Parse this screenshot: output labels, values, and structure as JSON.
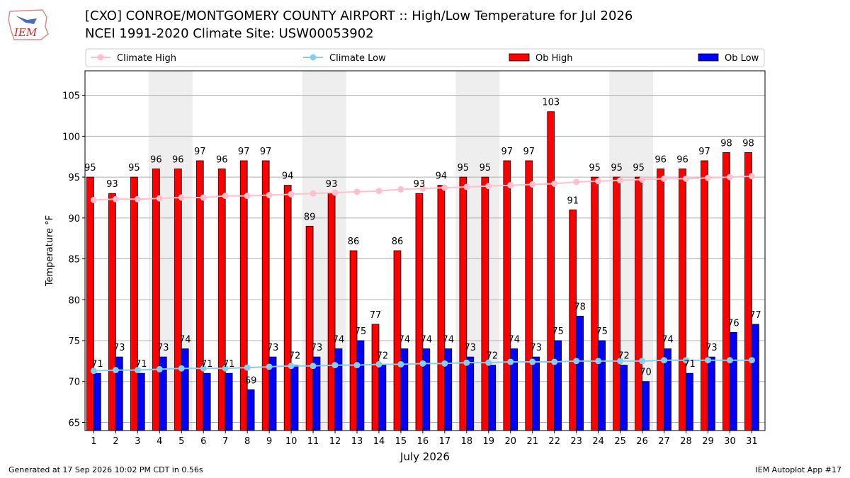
{
  "title_line1": "[CXO] CONROE/MONTGOMERY COUNTY AIRPORT :: High/Low Temperature for Jul 2026",
  "title_line2": "NCEI 1991-2020 Climate Site: USW00053902",
  "logo_text": "IEM",
  "footer_left": "Generated at 17 Sep 2026 10:02 PM CDT in 0.56s",
  "footer_right": "IEM Autoplot App #17",
  "chart_data": {
    "type": "bar",
    "xlabel": "July 2026",
    "ylabel": "Temperature °F",
    "ylim": [
      64,
      108
    ],
    "xlim": [
      0.6,
      31.6
    ],
    "yticks": [
      65,
      70,
      75,
      80,
      85,
      90,
      95,
      100,
      105
    ],
    "grid": "horizontal",
    "legend_position": "top",
    "weekend_shading": [
      [
        4,
        5
      ],
      [
        11,
        12
      ],
      [
        18,
        19
      ],
      [
        25,
        26
      ]
    ],
    "categories": [
      "1",
      "2",
      "3",
      "4",
      "5",
      "6",
      "7",
      "8",
      "9",
      "10",
      "11",
      "12",
      "13",
      "14",
      "15",
      "16",
      "17",
      "18",
      "19",
      "20",
      "21",
      "22",
      "23",
      "24",
      "25",
      "26",
      "27",
      "28",
      "29",
      "30",
      "31"
    ],
    "series": [
      {
        "name": "Ob High",
        "kind": "bar",
        "color": "#ff0000",
        "values": [
          95,
          93,
          95,
          96,
          96,
          97,
          96,
          97,
          97,
          94,
          89,
          93,
          86,
          77,
          86,
          93,
          94,
          95,
          95,
          97,
          97,
          103,
          91,
          95,
          95,
          95,
          96,
          96,
          97,
          98,
          98
        ]
      },
      {
        "name": "Ob Low",
        "kind": "bar",
        "color": "#0000ff",
        "values": [
          71,
          73,
          71,
          73,
          74,
          71,
          71,
          69,
          73,
          72,
          73,
          74,
          75,
          72,
          74,
          74,
          74,
          73,
          72,
          74,
          73,
          75,
          78,
          75,
          72,
          70,
          74,
          71,
          73,
          76,
          77
        ]
      },
      {
        "name": "Climate High",
        "kind": "line",
        "color": "#ffc0cb",
        "values": [
          92.2,
          92.3,
          92.3,
          92.4,
          92.5,
          92.5,
          92.7,
          92.7,
          92.8,
          92.9,
          93.0,
          93.1,
          93.2,
          93.3,
          93.5,
          93.6,
          93.7,
          93.8,
          93.9,
          94.0,
          94.1,
          94.2,
          94.4,
          94.5,
          94.6,
          94.7,
          94.8,
          94.8,
          94.9,
          95.0,
          95.1
        ]
      },
      {
        "name": "Climate Low",
        "kind": "line",
        "color": "#87ceeb",
        "values": [
          71.3,
          71.4,
          71.4,
          71.5,
          71.6,
          71.6,
          71.6,
          71.7,
          71.8,
          71.9,
          71.9,
          72.0,
          72.0,
          72.1,
          72.1,
          72.2,
          72.2,
          72.3,
          72.3,
          72.4,
          72.4,
          72.4,
          72.5,
          72.5,
          72.5,
          72.5,
          72.6,
          72.6,
          72.6,
          72.6,
          72.6
        ]
      }
    ]
  }
}
